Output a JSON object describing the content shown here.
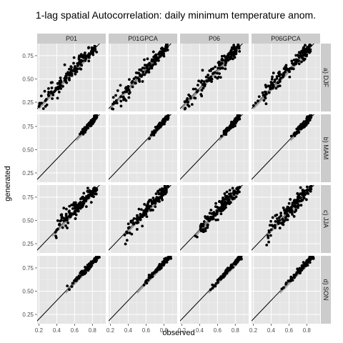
{
  "chart_data": {
    "type": "scatter",
    "title": "1-lag spatial Autocorrelation: daily minimum temperature anom.",
    "xlabel": "observed",
    "ylabel": "generated",
    "xlim": [
      0.18,
      0.95
    ],
    "ylim": [
      0.15,
      0.88
    ],
    "x_ticks": [
      0.2,
      0.4,
      0.6,
      0.8
    ],
    "y_ticks": [
      0.25,
      0.5,
      0.75
    ],
    "columns": [
      "P01",
      "P01GPCA",
      "P06",
      "P06GPCA"
    ],
    "rows": [
      "a) DJF",
      "b) MAM",
      "c) JJA",
      "d) SON"
    ],
    "reference_line": "y = x",
    "grid": true,
    "point_color": "#000000",
    "panel_background": "#e5e5e5",
    "strip_background": "#cccccc",
    "panels": [
      {
        "row": "a) DJF",
        "x_range": [
          0.2,
          0.85
        ],
        "y_range": [
          0.2,
          0.82
        ],
        "cloud": "wide"
      },
      {
        "row": "b) MAM",
        "x_range": [
          0.62,
          0.85
        ],
        "y_range": [
          0.6,
          0.85
        ],
        "cloud": "narrow"
      },
      {
        "row": "c) JJA",
        "x_range": [
          0.35,
          0.85
        ],
        "y_range": [
          0.38,
          0.82
        ],
        "cloud": "wide"
      },
      {
        "row": "d) SON",
        "x_range": [
          0.5,
          0.88
        ],
        "y_range": [
          0.5,
          0.88
        ],
        "cloud": "narrow"
      }
    ]
  }
}
